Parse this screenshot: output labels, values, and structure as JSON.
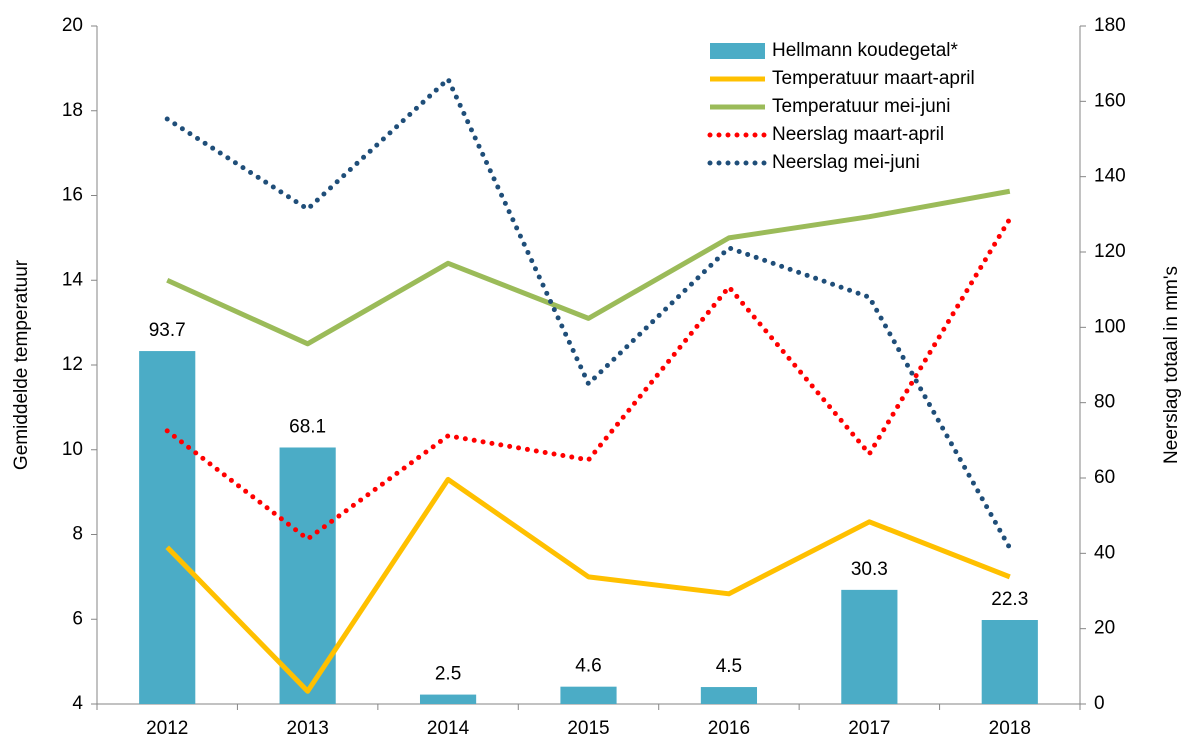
{
  "chart_data": {
    "type": "combo",
    "categories": [
      "2012",
      "2013",
      "2014",
      "2015",
      "2016",
      "2017",
      "2018"
    ],
    "ylabel": "Gemiddelde  temperatuur",
    "y2label": "Neerslag  totaal in mm's",
    "ylim": [
      4,
      20
    ],
    "yticks": [
      4,
      6,
      8,
      10,
      12,
      14,
      16,
      18,
      20
    ],
    "y2lim": [
      0,
      180
    ],
    "y2ticks": [
      0,
      20,
      40,
      60,
      80,
      100,
      120,
      140,
      160,
      180
    ],
    "grid": false,
    "legend": "upper right",
    "series": [
      {
        "name": "Hellmann koudegetal*",
        "type": "bar",
        "axis": "y2",
        "color": "#4bacc6",
        "values": [
          93.7,
          68.1,
          2.5,
          4.6,
          4.5,
          30.3,
          22.3
        ]
      },
      {
        "name": "Temperatuur maart-april",
        "type": "line",
        "line_style": "solid",
        "color": "#ffc000",
        "values": [
          7.7,
          4.3,
          9.3,
          7.0,
          6.6,
          8.3,
          7.0
        ]
      },
      {
        "name": "Temperatuur mei-juni",
        "type": "line",
        "line_style": "solid",
        "color": "#9bbb59",
        "values": [
          14.0,
          12.5,
          14.4,
          13.1,
          15.0,
          15.5,
          16.1
        ]
      },
      {
        "name": "Neerslag maart-april",
        "type": "line",
        "line_style": "dotted",
        "axis": "y2",
        "color": "#ff0000",
        "values": [
          72.5,
          43.8,
          71.2,
          64.8,
          110.7,
          66.4,
          128.8
        ]
      },
      {
        "name": "Neerslag mei-juni",
        "type": "line",
        "line_style": "dotted",
        "axis": "y2",
        "color": "#1f4e79",
        "values": [
          155.3,
          131.4,
          165.9,
          85.0,
          121.1,
          108.0,
          41.4
        ]
      }
    ]
  }
}
